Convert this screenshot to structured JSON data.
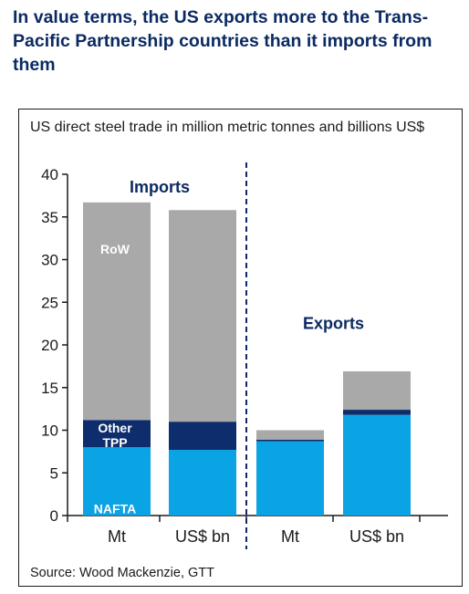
{
  "headline": "In value terms, the US exports more to the Trans-Pacific Partnership countries than it imports from them",
  "chart_data": {
    "type": "bar",
    "stacked": true,
    "title": "US direct steel trade in million metric tonnes and billions US$",
    "source": "Source: Wood Mackenzie, GTT",
    "ylim": [
      0,
      40
    ],
    "yticks": [
      0,
      5,
      10,
      15,
      20,
      25,
      30,
      35,
      40
    ],
    "grid": false,
    "categories": [
      "Mt",
      "US$ bn",
      "Mt",
      "US$ bn"
    ],
    "groups": [
      {
        "label": "Imports",
        "categories": [
          0,
          1
        ]
      },
      {
        "label": "Exports",
        "categories": [
          2,
          3
        ]
      }
    ],
    "series": [
      {
        "name": "NAFTA",
        "color": "#0aa3e4",
        "values": [
          8.0,
          7.7,
          8.7,
          11.8
        ]
      },
      {
        "name": "Other TPP",
        "color": "#0d2d6c",
        "values": [
          3.2,
          3.3,
          0.2,
          0.6
        ]
      },
      {
        "name": "RoW",
        "color": "#a9a9a9",
        "values": [
          25.5,
          24.8,
          1.1,
          4.5
        ]
      }
    ],
    "segment_labels": [
      {
        "text": "RoW",
        "category": 0,
        "series": 2
      },
      {
        "text": "Other",
        "category": 0,
        "series": 1
      },
      {
        "text": "TPP",
        "category": 0,
        "series": 1
      },
      {
        "text": "NAFTA",
        "category": 0,
        "series": 0
      }
    ]
  }
}
